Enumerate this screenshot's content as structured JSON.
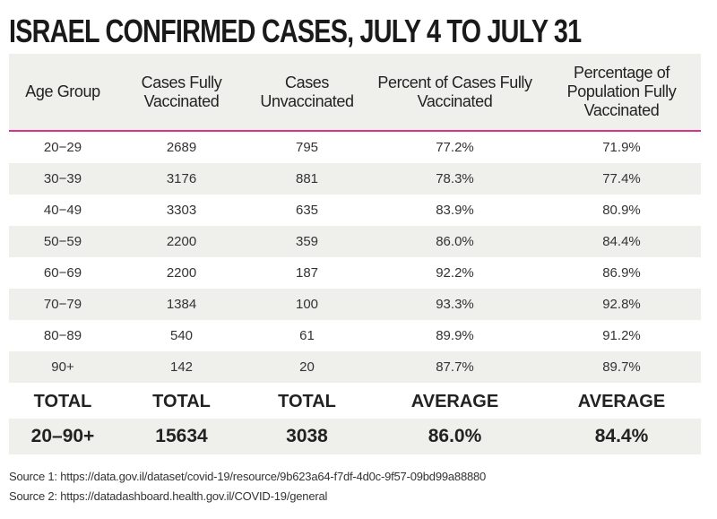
{
  "chart_data": {
    "type": "table",
    "title": "ISRAEL CONFIRMED CASES, JULY 4 TO JULY 31",
    "columns": [
      "Age Group",
      "Cases Fully Vaccinated",
      "Cases Unvaccinated",
      "Percent of Cases Fully Vaccinated",
      "Percentage of Population Fully Vaccinated"
    ],
    "rows": [
      [
        "20−29",
        "2689",
        "795",
        "77.2%",
        "71.9%"
      ],
      [
        "30−39",
        "3176",
        "881",
        "78.3%",
        "77.4%"
      ],
      [
        "40−49",
        "3303",
        "635",
        "83.9%",
        "80.9%"
      ],
      [
        "50−59",
        "2200",
        "359",
        "86.0%",
        "84.4%"
      ],
      [
        "60−69",
        "2200",
        "187",
        "92.2%",
        "86.9%"
      ],
      [
        "70−79",
        "1384",
        "100",
        "93.3%",
        "92.8%"
      ],
      [
        "80−89",
        "540",
        "61",
        "89.9%",
        "91.2%"
      ],
      [
        "90+",
        "142",
        "20",
        "87.7%",
        "89.7%"
      ]
    ],
    "summary_labels": [
      "TOTAL",
      "TOTAL",
      "TOTAL",
      "AVERAGE",
      "AVERAGE"
    ],
    "summary_values": [
      "20–90+",
      "15634",
      "3038",
      "86.0%",
      "84.4%"
    ],
    "colors": {
      "header_bg": "#efefeb",
      "accent_line": "#d9338a"
    }
  },
  "sources": [
    "Source 1: https://data.gov.il/dataset/covid-19/resource/9b623a64-f7df-4d0c-9f57-09bd99a88880",
    "Source 2: https://datadashboard.health.gov.il/COVID-19/general"
  ]
}
